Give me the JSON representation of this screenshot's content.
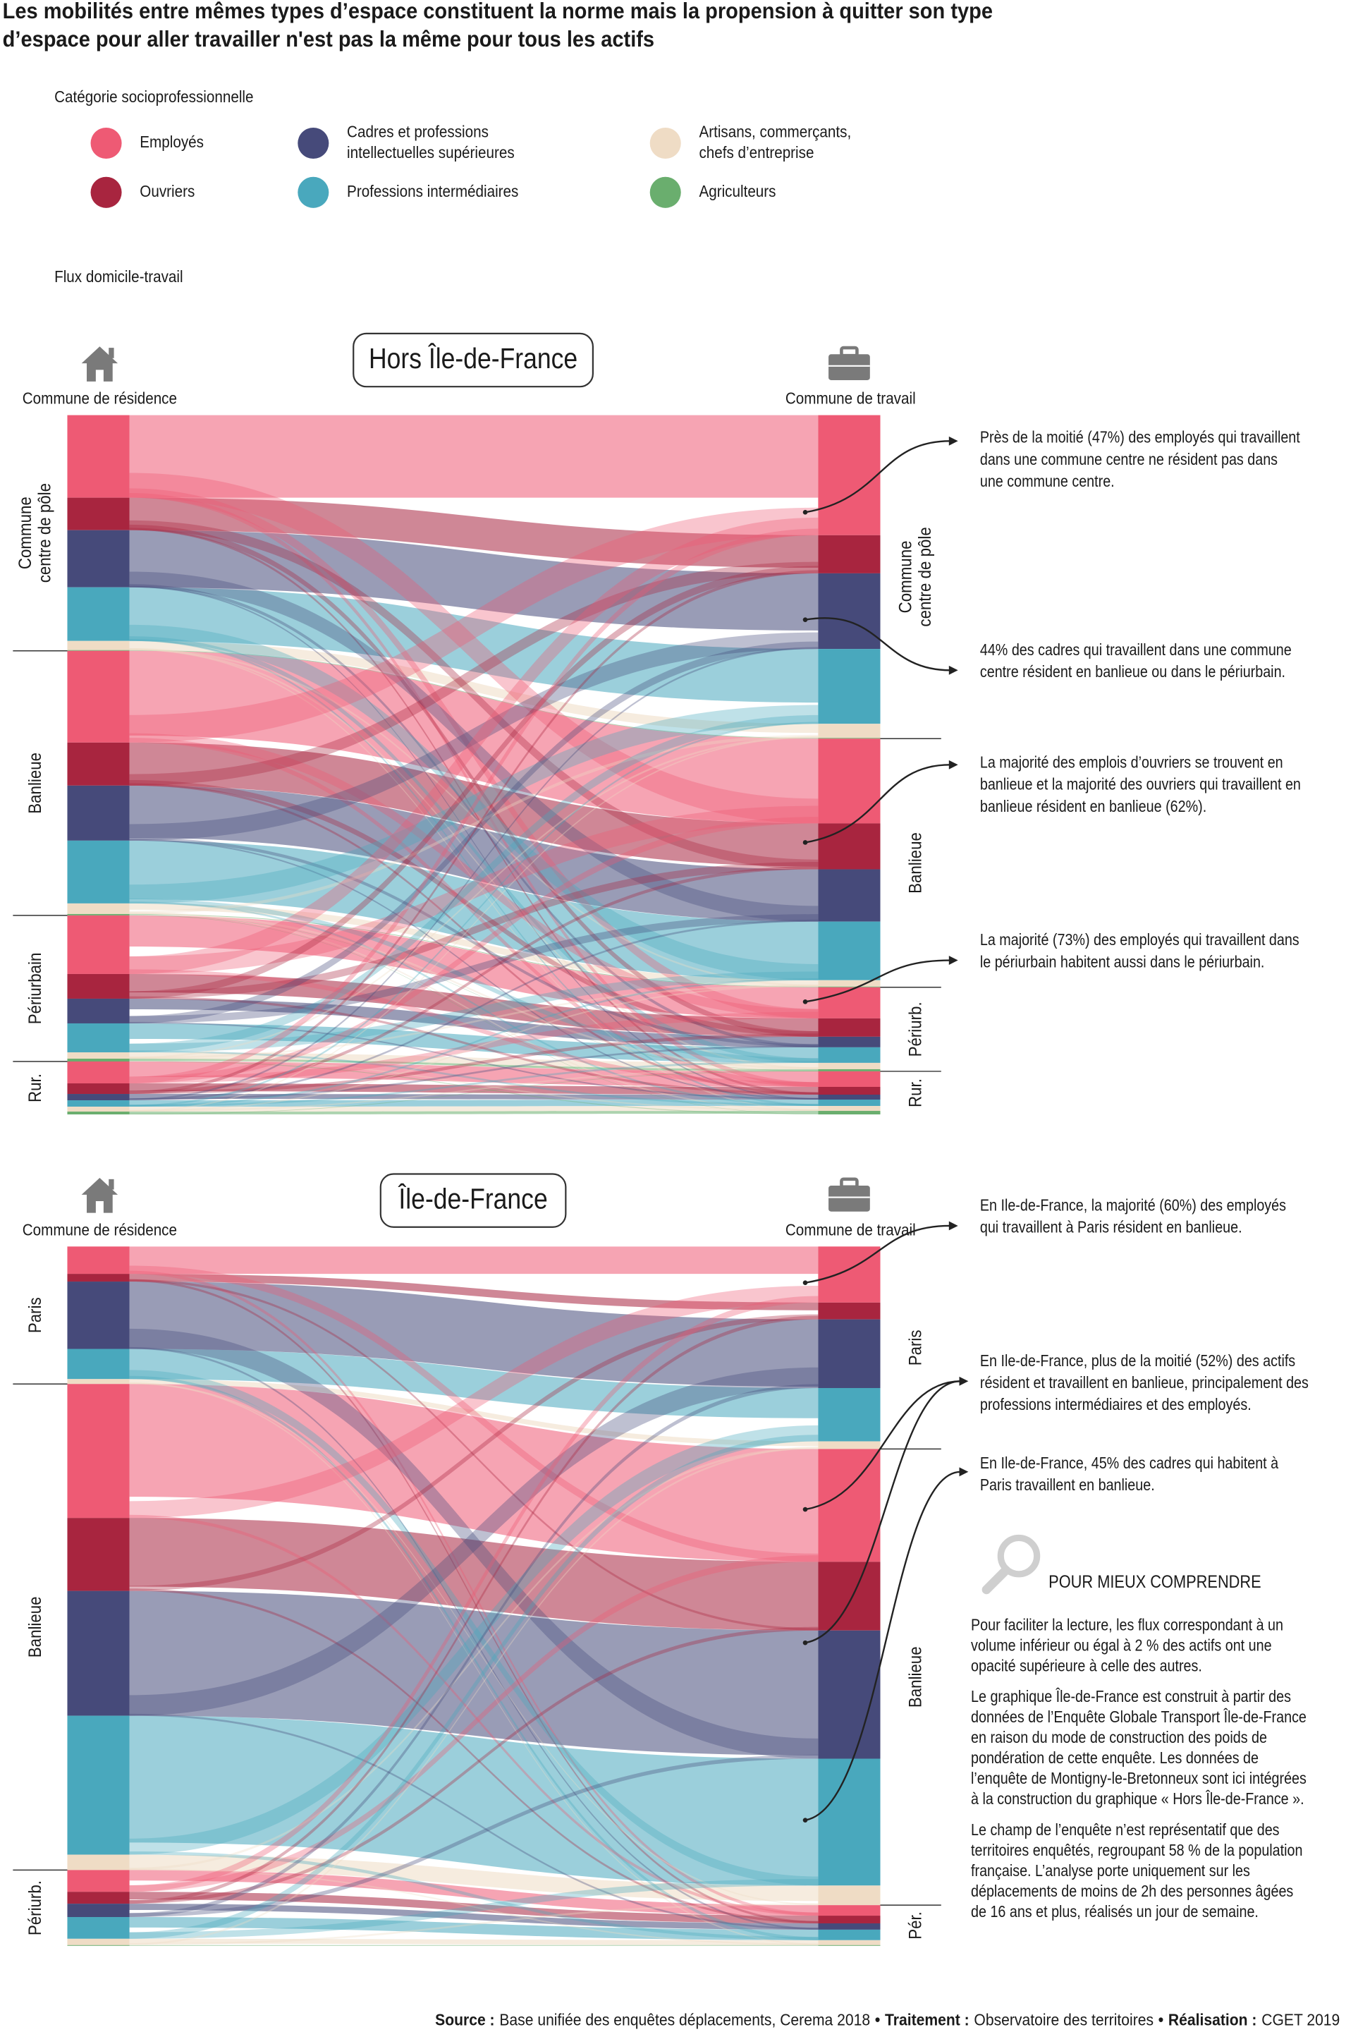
{
  "title": [
    "Les mobilités entre mêmes types d’espace constituent la norme mais la propension à quitter son type",
    "d’espace pour aller travailler n'est pas la même pour tous les actifs"
  ],
  "legend": {
    "title": "Catégorie socioprofessionnelle",
    "items": [
      {
        "label": [
          "Employés"
        ],
        "color": "#ee5a74"
      },
      {
        "label": [
          "Ouvriers"
        ],
        "color": "#a8253f"
      },
      {
        "label": [
          "Cadres et professions",
          "intellectuelles supérieures"
        ],
        "color": "#464a7a"
      },
      {
        "label": [
          "Professions intermédiaires"
        ],
        "color": "#49a8bd"
      },
      {
        "label": [
          "Artisans, commerçants,",
          "chefs d’entreprise"
        ],
        "color": "#efdcc5"
      },
      {
        "label": [
          "Agriculteurs"
        ],
        "color": "#6aae6e"
      }
    ]
  },
  "flux_label": "Flux domicile-travail",
  "panels": [
    {
      "title": "Hors Île-de-France",
      "residence_label": "Commune de résidence",
      "work_label": "Commune de travail",
      "residence": [
        {
          "label": [
            "Commune",
            "centre de pôle"
          ],
          "values": [
            11.7,
            4.6,
            8.1,
            7.6,
            1.3,
            0.1
          ]
        },
        {
          "label": [
            "Banlieue"
          ],
          "values": [
            13,
            6.1,
            7.8,
            8.9,
            1.5,
            0.2
          ]
        },
        {
          "label": [
            "Périurbain"
          ],
          "values": [
            8.3,
            3.5,
            3.5,
            4.1,
            0.9,
            0.4
          ]
        },
        {
          "label": [
            "Rur."
          ],
          "values": [
            3.1,
            1.5,
            0.9,
            0.9,
            0.7,
            0.4
          ]
        }
      ],
      "work": [
        {
          "label": [
            "Commune",
            "centre de pôle"
          ],
          "values": [
            17,
            5.4,
            10.7,
            10.6,
            2,
            0.1
          ]
        },
        {
          "label": [
            "Banlieue"
          ],
          "values": [
            12,
            6.5,
            7.4,
            8.3,
            0.9,
            0.1
          ]
        },
        {
          "label": [
            "Périurb."
          ],
          "values": [
            4.4,
            2.6,
            1.5,
            2.2,
            0.9,
            0.3
          ]
        },
        {
          "label": [
            "Rur."
          ],
          "values": [
            2.2,
            1.1,
            0.7,
            0.9,
            0.7,
            0.5
          ]
        }
      ],
      "annotations": [
        [
          "Près de la moitié (47%) des employés qui travaillent",
          "dans une commune centre ne résident pas dans",
          "une commune centre."
        ],
        [
          "44% des cadres qui travaillent dans une commune",
          "centre résident en banlieue ou dans le périurbain."
        ],
        [
          "La majorité des emplois d’ouvriers se trouvent en",
          "banlieue et la majorité des ouvriers qui travaillent en",
          "banlieue résident en banlieue (62%)."
        ],
        [
          "La majorité (73%) des employés qui travaillent dans",
          "le périurbain habitent aussi dans le périurbain."
        ]
      ]
    },
    {
      "title": "Île-de-France",
      "residence_label": "Commune de résidence",
      "work_label": "Commune de travail",
      "residence": [
        {
          "label": [
            "Paris"
          ],
          "values": [
            3.9,
            1.1,
            9.6,
            4.3,
            0.7,
            0
          ]
        },
        {
          "label": [
            "Banlieue"
          ],
          "values": [
            19.1,
            10.4,
            17.8,
            19.8,
            2.2,
            0
          ]
        },
        {
          "label": [
            "Périurb."
          ],
          "values": [
            3.1,
            1.7,
            1.9,
            3.1,
            0.9,
            0.1
          ]
        }
      ],
      "work": [
        {
          "label": [
            "Paris"
          ],
          "values": [
            8,
            2.4,
            9.8,
            7.6,
            1.1,
            0
          ]
        },
        {
          "label": [
            "Banlieue"
          ],
          "values": [
            16.1,
            9.8,
            18.3,
            18.1,
            2.8,
            0
          ]
        },
        {
          "label": [
            "Pér."
          ],
          "values": [
            1.5,
            1.1,
            0.9,
            1.5,
            0.7,
            0.1
          ]
        }
      ],
      "annotations": [
        [
          "En Ile-de-France, la majorité (60%) des employés",
          "qui travaillent à Paris résident en banlieue."
        ],
        [
          "En Ile-de-France, plus de la moitié (52%) des actifs",
          "résident et travaillent en banlieue, principalement des",
          "professions intermédiaires et des employés."
        ],
        [
          "En Ile-de-France, 45% des cadres qui habitent à",
          "Paris travaillent en banlieue."
        ]
      ]
    }
  ],
  "note": {
    "title": "POUR MIEUX COMPRENDRE",
    "paragraphs": [
      [
        "Pour faciliter la lecture, les flux correspondant à un",
        "volume inférieur ou égal à 2 % des actifs ont une",
        "opacité supérieure à celle des autres."
      ],
      [
        "Le graphique Île-de-France est construit à partir des",
        "données de l’Enquête Globale Transport Île-de-France",
        "en raison du mode de construction des poids de",
        "pondération de cette enquête. Les données de",
        "l’enquête de Montigny-le-Bretonneux sont ici intégrées",
        "à la construction du graphique « Hors Île-de-France »."
      ],
      [
        "Le champ de l’enquête n’est représentatif que des",
        "territoires enquêtés, regroupant 58 % de la population",
        "française. L’analyse porte uniquement sur les",
        "déplacements de moins de 2h des personnes âgées",
        "de 16 ans et plus, réalisés un jour de semaine."
      ]
    ]
  },
  "footer": [
    {
      "text": "Source :",
      "bold": true
    },
    {
      "text": "Base unifiée des enquêtes déplacements, Cerema 2018",
      "bold": false
    },
    {
      "text": "•",
      "bold": true
    },
    {
      "text": "Traitement :",
      "bold": true
    },
    {
      "text": "Observatoire des territoires",
      "bold": false
    },
    {
      "text": "•",
      "bold": true
    },
    {
      "text": "Réalisation :",
      "bold": true
    },
    {
      "text": "CGET 2019",
      "bold": false
    }
  ]
}
